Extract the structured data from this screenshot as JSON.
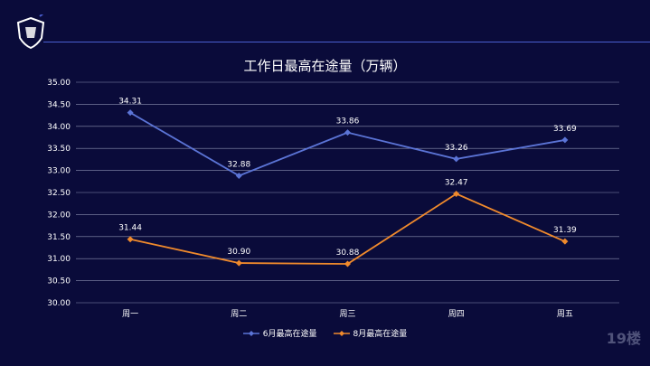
{
  "chart_data": {
    "type": "line",
    "title": "工作日最高在途量（万辆）",
    "categories": [
      "周一",
      "周二",
      "周三",
      "周四",
      "周五"
    ],
    "ylim": [
      30.0,
      35.0
    ],
    "yticks": [
      "30.00",
      "30.50",
      "31.00",
      "31.50",
      "32.00",
      "32.50",
      "33.00",
      "33.50",
      "34.00",
      "34.50",
      "35.00"
    ],
    "grid": true,
    "legend_position": "bottom",
    "series": [
      {
        "name": "6月最高在途量",
        "color": "#5b74d6",
        "values": [
          34.31,
          32.88,
          33.86,
          33.26,
          33.69
        ],
        "labels": [
          "34.31",
          "32.88",
          "33.86",
          "33.26",
          "33.69"
        ]
      },
      {
        "name": "8月最高在途量",
        "color": "#f08a2c",
        "values": [
          31.44,
          30.9,
          30.88,
          32.47,
          31.39
        ],
        "labels": [
          "31.44",
          "30.90",
          "30.88",
          "32.47",
          "31.39"
        ]
      }
    ]
  },
  "watermark": "19楼"
}
